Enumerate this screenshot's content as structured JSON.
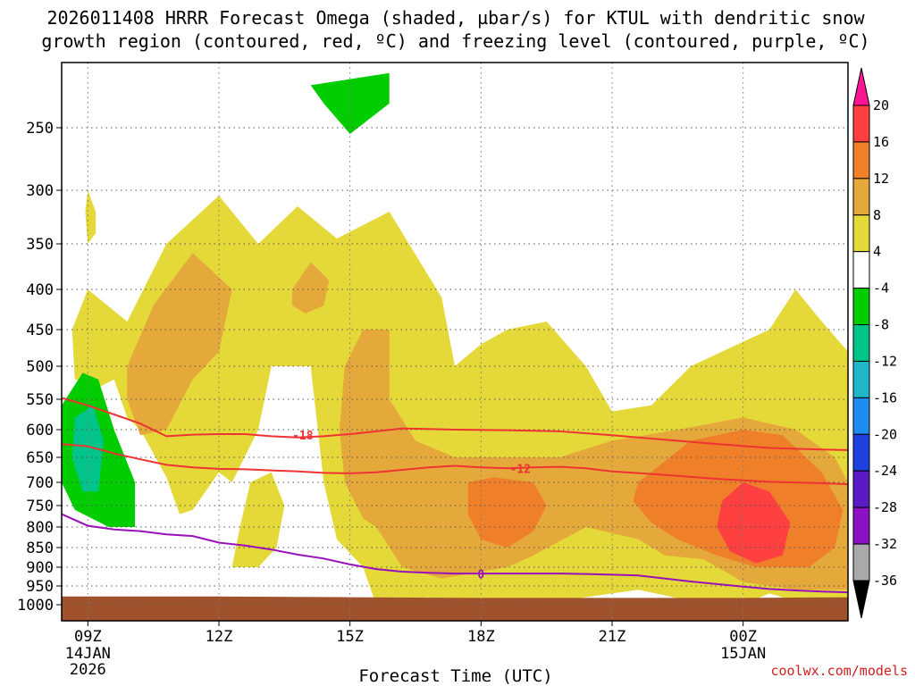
{
  "title_line1": "2026011408 HRRR Forecast Omega (shaded, µbar/s) for KTUL with dendritic snow",
  "title_line2": "growth region (contoured, red, ºC) and freezing level (contoured, purple, ºC)",
  "xlabel": "Forecast Time (UTC)",
  "credit": "coolwx.com/models",
  "chart_data": {
    "type": "time-height cross section",
    "x_unit": "hours from 2026-01-14 09Z",
    "xlim": [
      -1,
      29
    ],
    "y_unit": "hPa",
    "ylim": [
      1030,
      200
    ],
    "x_ticks": [
      {
        "x": 0,
        "label": "09Z",
        "sub1": "14JAN",
        "sub2": "2026"
      },
      {
        "x": 5,
        "label": "12Z",
        "sub1": "",
        "sub2": ""
      },
      {
        "x": 10,
        "label": "15Z",
        "sub1": "",
        "sub2": ""
      },
      {
        "x": 15,
        "label": "18Z",
        "sub1": "",
        "sub2": ""
      },
      {
        "x": 20,
        "label": "21Z",
        "sub1": "",
        "sub2": ""
      },
      {
        "x": 25,
        "label": "00Z",
        "sub1": "15JAN",
        "sub2": ""
      }
    ],
    "y_ticks": [
      250,
      300,
      350,
      400,
      450,
      500,
      550,
      600,
      650,
      700,
      750,
      800,
      850,
      900,
      950,
      1000
    ],
    "colorbar": {
      "levels": [
        20,
        16,
        12,
        8,
        4,
        -4,
        -8,
        -12,
        -16,
        -20,
        -24,
        -28,
        -32,
        -36
      ],
      "colors": [
        "#ff1493",
        "#ff4040",
        "#f07f2a",
        "#e5a83a",
        "#e5d93a",
        "#ffffff",
        "#00cc00",
        "#00c48a",
        "#1fb6c8",
        "#1e8cf0",
        "#1f3fdf",
        "#5a1ac4",
        "#8c10c4",
        "#a9a9a9",
        "#000000"
      ]
    },
    "omega_regions": [
      {
        "level": "4 to 8",
        "color": "#e5d93a",
        "points": [
          [
            0,
            300
          ],
          [
            0.3,
            320
          ],
          [
            0.3,
            340
          ],
          [
            0,
            350
          ],
          [
            -0.1,
            320
          ]
        ]
      },
      {
        "level": "4 to 8",
        "color": "#e5d93a",
        "points": [
          [
            -0.5,
            520
          ],
          [
            -0.6,
            450
          ],
          [
            0,
            400
          ],
          [
            1.5,
            440
          ],
          [
            3,
            350
          ],
          [
            5,
            305
          ],
          [
            6.5,
            350
          ],
          [
            8,
            315
          ],
          [
            9.5,
            345
          ],
          [
            11.5,
            320
          ],
          [
            13.5,
            410
          ],
          [
            14,
            500
          ],
          [
            15,
            470
          ],
          [
            16,
            450
          ],
          [
            17.5,
            440
          ],
          [
            19,
            500
          ],
          [
            20,
            570
          ],
          [
            21.5,
            560
          ],
          [
            23,
            500
          ],
          [
            26,
            450
          ],
          [
            27,
            400
          ],
          [
            28,
            440
          ],
          [
            29,
            480
          ],
          [
            29,
            1000
          ],
          [
            27.5,
            1000
          ],
          [
            26,
            970
          ],
          [
            25,
            1000
          ],
          [
            23,
            990
          ],
          [
            21,
            960
          ],
          [
            18,
            990
          ],
          [
            15,
            1000
          ],
          [
            13,
            980
          ],
          [
            11,
            1000
          ],
          [
            10.5,
            900
          ],
          [
            9.5,
            830
          ],
          [
            9,
            700
          ],
          [
            8.5,
            500
          ],
          [
            7,
            500
          ],
          [
            6.5,
            600
          ],
          [
            5.5,
            700
          ],
          [
            5,
            680
          ],
          [
            4,
            760
          ],
          [
            3.5,
            770
          ],
          [
            3,
            690
          ],
          [
            2,
            600
          ],
          [
            1.5,
            580
          ],
          [
            1,
            520
          ],
          [
            0.5,
            530
          ]
        ]
      },
      {
        "level": "4 to 8",
        "color": "#e5d93a",
        "points": [
          [
            6.2,
            700
          ],
          [
            7,
            680
          ],
          [
            7.5,
            750
          ],
          [
            7.2,
            850
          ],
          [
            6.5,
            900
          ],
          [
            5.5,
            900
          ],
          [
            5.8,
            800
          ]
        ]
      },
      {
        "level": "8 to 12",
        "color": "#e5a83a",
        "points": [
          [
            1.5,
            500
          ],
          [
            2.5,
            420
          ],
          [
            4,
            360
          ],
          [
            5.5,
            400
          ],
          [
            5,
            480
          ],
          [
            4,
            520
          ],
          [
            3,
            600
          ],
          [
            2,
            610
          ],
          [
            1.5,
            550
          ]
        ]
      },
      {
        "level": "8 to 12",
        "color": "#e5a83a",
        "points": [
          [
            7.8,
            400
          ],
          [
            8.5,
            370
          ],
          [
            9.2,
            390
          ],
          [
            9,
            420
          ],
          [
            8.3,
            430
          ],
          [
            7.8,
            420
          ]
        ]
      },
      {
        "level": "8 to 12",
        "color": "#e5a83a",
        "points": [
          [
            9.8,
            500
          ],
          [
            10.5,
            450
          ],
          [
            11.5,
            450
          ],
          [
            11.5,
            550
          ],
          [
            12.5,
            620
          ],
          [
            14,
            650
          ],
          [
            16,
            650
          ],
          [
            18,
            650
          ],
          [
            20,
            620
          ],
          [
            22.5,
            600
          ],
          [
            25,
            580
          ],
          [
            27,
            600
          ],
          [
            28.5,
            650
          ],
          [
            29,
            700
          ],
          [
            29,
            960
          ],
          [
            27,
            960
          ],
          [
            25,
            940
          ],
          [
            23.5,
            880
          ],
          [
            22,
            870
          ],
          [
            21,
            830
          ],
          [
            19,
            800
          ],
          [
            17,
            870
          ],
          [
            16,
            900
          ],
          [
            13.5,
            930
          ],
          [
            12,
            900
          ],
          [
            11,
            800
          ],
          [
            10.5,
            780
          ],
          [
            9.8,
            700
          ],
          [
            9.6,
            600
          ]
        ]
      },
      {
        "level": "12 to 16",
        "color": "#f07f2a",
        "points": [
          [
            14.5,
            700
          ],
          [
            15.5,
            690
          ],
          [
            17,
            700
          ],
          [
            17.5,
            750
          ],
          [
            17,
            810
          ],
          [
            16,
            850
          ],
          [
            15,
            830
          ],
          [
            14.5,
            770
          ]
        ]
      },
      {
        "level": "12 to 16",
        "color": "#f07f2a",
        "points": [
          [
            21,
            700
          ],
          [
            23,
            620
          ],
          [
            25,
            600
          ],
          [
            26.5,
            610
          ],
          [
            28,
            680
          ],
          [
            28.8,
            760
          ],
          [
            28.5,
            850
          ],
          [
            27.5,
            900
          ],
          [
            25.5,
            900
          ],
          [
            24,
            870
          ],
          [
            22.5,
            830
          ],
          [
            21.5,
            790
          ],
          [
            20.8,
            740
          ]
        ]
      },
      {
        "level": "16 to 20",
        "color": "#ff4040",
        "points": [
          [
            24.2,
            740
          ],
          [
            25,
            700
          ],
          [
            26,
            720
          ],
          [
            26.8,
            790
          ],
          [
            26.5,
            870
          ],
          [
            25.5,
            890
          ],
          [
            24.5,
            860
          ],
          [
            24,
            800
          ]
        ]
      },
      {
        "level": "-8 to -4",
        "color": "#00cc00",
        "points": [
          [
            8.5,
            215
          ],
          [
            11.5,
            205
          ],
          [
            11.5,
            230
          ],
          [
            10,
            255
          ],
          [
            9,
            230
          ]
        ]
      },
      {
        "level": "-8 to -4",
        "color": "#00cc00",
        "points": [
          [
            -1,
            560
          ],
          [
            -0.2,
            510
          ],
          [
            0.4,
            520
          ],
          [
            1,
            600
          ],
          [
            1.8,
            700
          ],
          [
            1.8,
            800
          ],
          [
            0.8,
            800
          ],
          [
            -0.5,
            760
          ],
          [
            -1,
            700
          ]
        ]
      },
      {
        "level": "-12 to -8",
        "color": "#00c48a",
        "points": [
          [
            -0.5,
            580
          ],
          [
            0.2,
            560
          ],
          [
            0.6,
            620
          ],
          [
            0.4,
            720
          ],
          [
            -0.2,
            720
          ],
          [
            -0.6,
            650
          ]
        ]
      }
    ],
    "contours": [
      {
        "name": "dendritic -18C",
        "color": "#ee3333",
        "label": "-18",
        "label_at": [
          8.2,
          610
        ],
        "points": [
          [
            -1,
            548
          ],
          [
            0,
            560
          ],
          [
            1,
            575
          ],
          [
            2,
            590
          ],
          [
            3,
            612
          ],
          [
            4,
            609
          ],
          [
            5,
            608
          ],
          [
            6,
            608
          ],
          [
            7,
            612
          ],
          [
            8,
            614
          ],
          [
            9,
            612
          ],
          [
            10,
            608
          ],
          [
            11,
            603
          ],
          [
            12,
            598
          ],
          [
            14,
            600
          ],
          [
            16,
            601
          ],
          [
            18,
            603
          ],
          [
            20,
            610
          ],
          [
            22,
            618
          ],
          [
            24,
            626
          ],
          [
            26,
            633
          ],
          [
            28,
            636
          ],
          [
            29,
            637
          ]
        ]
      },
      {
        "name": "dendritic -12C",
        "color": "#ee3333",
        "label": "-12",
        "label_at": [
          16.5,
          672
        ],
        "points": [
          [
            -1,
            626
          ],
          [
            0,
            630
          ],
          [
            1,
            643
          ],
          [
            2,
            654
          ],
          [
            3,
            665
          ],
          [
            4,
            670
          ],
          [
            5,
            673
          ],
          [
            6,
            674
          ],
          [
            7,
            676
          ],
          [
            8,
            678
          ],
          [
            9,
            681
          ],
          [
            10,
            682
          ],
          [
            11,
            680
          ],
          [
            12,
            675
          ],
          [
            13,
            670
          ],
          [
            14,
            667
          ],
          [
            15,
            670
          ],
          [
            16,
            672
          ],
          [
            17,
            670
          ],
          [
            18,
            669
          ],
          [
            19,
            672
          ],
          [
            20,
            678
          ],
          [
            22,
            685
          ],
          [
            24,
            693
          ],
          [
            26,
            699
          ],
          [
            28,
            702
          ],
          [
            29,
            704
          ]
        ]
      },
      {
        "name": "freezing level 0C",
        "color": "#9911bb",
        "label": "0",
        "label_at": [
          15,
          918
        ],
        "points": [
          [
            -1,
            770
          ],
          [
            0,
            797
          ],
          [
            1,
            806
          ],
          [
            2,
            810
          ],
          [
            3,
            818
          ],
          [
            4,
            822
          ],
          [
            5,
            838
          ],
          [
            6,
            845
          ],
          [
            7,
            855
          ],
          [
            8,
            868
          ],
          [
            9,
            878
          ],
          [
            10,
            893
          ],
          [
            11,
            905
          ],
          [
            12,
            912
          ],
          [
            13,
            915
          ],
          [
            14,
            917
          ],
          [
            15,
            917
          ],
          [
            16,
            917
          ],
          [
            17,
            917
          ],
          [
            18,
            917
          ],
          [
            19,
            918
          ],
          [
            20,
            920
          ],
          [
            21,
            922
          ],
          [
            22,
            930
          ],
          [
            23,
            938
          ],
          [
            24,
            945
          ],
          [
            25,
            952
          ],
          [
            26,
            958
          ],
          [
            27,
            962
          ],
          [
            28,
            965
          ],
          [
            29,
            967
          ]
        ]
      }
    ],
    "terrain": {
      "color": "#a0522d",
      "top_hPa": 982,
      "points": [
        [
          -1,
          978
        ],
        [
          5,
          978
        ],
        [
          10,
          980
        ],
        [
          15,
          982
        ],
        [
          20,
          982
        ],
        [
          25,
          982
        ],
        [
          29,
          980
        ]
      ]
    }
  }
}
